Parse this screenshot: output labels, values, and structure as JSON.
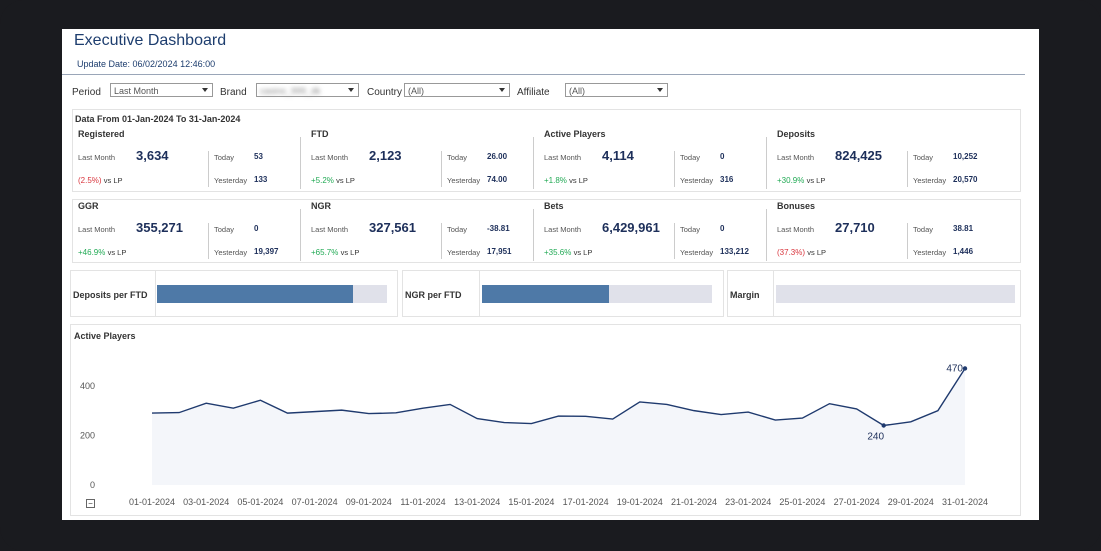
{
  "header": {
    "title": "Executive Dashboard",
    "update_date": "Update Date: 06/02/2024 12:46:00"
  },
  "filters": {
    "period_label": "Period",
    "period_value": "Last Month",
    "brand_label": "Brand",
    "brand_value": "casino_999_dk",
    "country_label": "Country",
    "country_value": "(All)",
    "affiliate_label": "Affiliate",
    "affiliate_value": "(All)"
  },
  "range_label": "Data From 01-Jan-2024 To 31-Jan-2024",
  "common": {
    "last_month": "Last Month",
    "today": "Today",
    "yesterday": "Yesterday",
    "vs_lp": "vs  LP"
  },
  "kpis": [
    {
      "name": "Registered",
      "value": "3,634",
      "change": "(2.5%)",
      "dir": "neg",
      "today": "53",
      "yesterday": "133"
    },
    {
      "name": "FTD",
      "value": "2,123",
      "change": "+5.2%",
      "dir": "pos",
      "today": "26.00",
      "yesterday": "74.00"
    },
    {
      "name": "Active Players",
      "value": "4,114",
      "change": "+1.8%",
      "dir": "pos",
      "today": "0",
      "yesterday": "316"
    },
    {
      "name": "Deposits",
      "value": "824,425",
      "change": "+30.9%",
      "dir": "pos",
      "today": "10,252",
      "yesterday": "20,570"
    },
    {
      "name": "GGR",
      "value": "355,271",
      "change": "+46.9%",
      "dir": "pos",
      "today": "0",
      "yesterday": "19,397"
    },
    {
      "name": "NGR",
      "value": "327,561",
      "change": "+65.7%",
      "dir": "pos",
      "today": "-38.81",
      "yesterday": "17,951"
    },
    {
      "name": "Bets",
      "value": "6,429,961",
      "change": "+35.6%",
      "dir": "pos",
      "today": "0",
      "yesterday": "133,212"
    },
    {
      "name": "Bonuses",
      "value": "27,710",
      "change": "(37.3%)",
      "dir": "neg",
      "today": "38.81",
      "yesterday": "1,446"
    }
  ],
  "metrics": [
    {
      "label": "Deposits per FTD",
      "fill_pct": 85
    },
    {
      "label": "NGR per FTD",
      "fill_pct": 55
    },
    {
      "label": "Margin",
      "fill_pct": 0
    }
  ],
  "colors": {
    "accent": "#1d3d6e",
    "bar": "#4e79a7",
    "line": "#1f3a6e",
    "pos": "#22aa55",
    "neg": "#d9363e"
  },
  "chart_data": {
    "type": "line",
    "title": "Active Players",
    "x": [
      "01-01-2024",
      "02-01-2024",
      "03-01-2024",
      "04-01-2024",
      "05-01-2024",
      "06-01-2024",
      "07-01-2024",
      "08-01-2024",
      "09-01-2024",
      "10-01-2024",
      "11-01-2024",
      "12-01-2024",
      "13-01-2024",
      "14-01-2024",
      "15-01-2024",
      "16-01-2024",
      "17-01-2024",
      "18-01-2024",
      "19-01-2024",
      "20-01-2024",
      "21-01-2024",
      "22-01-2024",
      "23-01-2024",
      "24-01-2024",
      "25-01-2024",
      "26-01-2024",
      "27-01-2024",
      "28-01-2024",
      "29-01-2024",
      "30-01-2024",
      "31-01-2024"
    ],
    "xtick_labels": [
      "01-01-2024",
      "03-01-2024",
      "05-01-2024",
      "07-01-2024",
      "09-01-2024",
      "11-01-2024",
      "13-01-2024",
      "15-01-2024",
      "17-01-2024",
      "19-01-2024",
      "21-01-2024",
      "23-01-2024",
      "25-01-2024",
      "27-01-2024",
      "29-01-2024",
      "31-01-2024"
    ],
    "values": [
      290,
      292,
      330,
      310,
      342,
      290,
      296,
      302,
      288,
      291,
      310,
      325,
      268,
      252,
      248,
      278,
      277,
      266,
      335,
      325,
      300,
      284,
      294,
      262,
      270,
      328,
      307,
      240,
      255,
      300,
      470
    ],
    "yticks": [
      0,
      200,
      400
    ],
    "ylim": [
      0,
      480
    ],
    "annotations": [
      {
        "index": 27,
        "label": "240",
        "position": "below"
      },
      {
        "index": 30,
        "label": "470",
        "position": "left"
      }
    ],
    "xlabel": "",
    "ylabel": ""
  }
}
